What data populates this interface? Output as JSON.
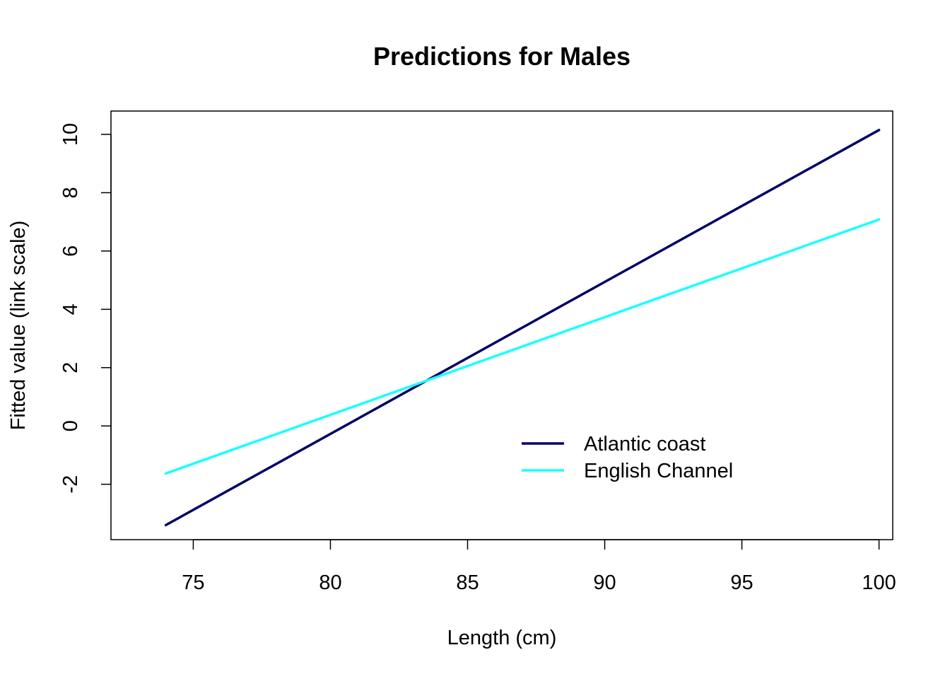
{
  "chart_data": {
    "type": "line",
    "title": "Predictions for Males",
    "xlabel": "Length (cm)",
    "ylabel": "Fitted value (link scale)",
    "xlim": [
      72,
      100.5
    ],
    "ylim": [
      -3.9,
      10.8
    ],
    "xticks": [
      75,
      80,
      85,
      90,
      95,
      100
    ],
    "yticks": [
      -2,
      0,
      2,
      4,
      6,
      8,
      10
    ],
    "grid": false,
    "legend_position": "bottom-right",
    "series": [
      {
        "name": "Atlantic coast",
        "color": "#000066",
        "x": [
          74,
          100
        ],
        "y": [
          -3.4,
          10.15
        ]
      },
      {
        "name": "English Channel",
        "color": "#1AFFFF",
        "x": [
          74,
          100
        ],
        "y": [
          -1.63,
          7.08
        ]
      }
    ]
  }
}
